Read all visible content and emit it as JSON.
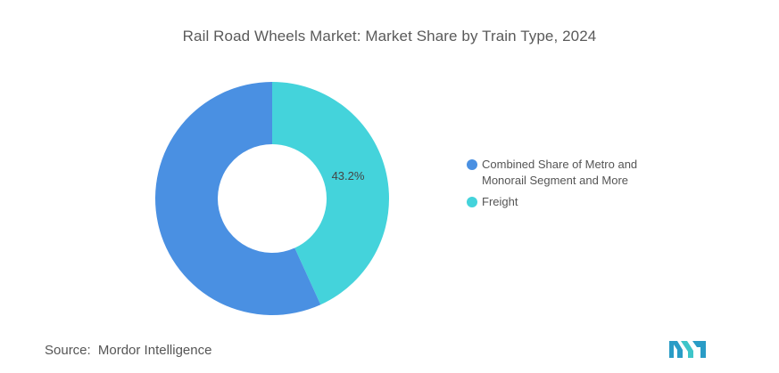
{
  "title": "Rail Road Wheels Market: Market Share by Train Type, 2024",
  "chart_data": {
    "type": "pie",
    "donut": true,
    "categories": [
      "Combined Share of Metro and Monorail Segment and More",
      "Freight"
    ],
    "values": [
      56.8,
      43.2
    ],
    "data_labels": [
      "",
      "43.2%"
    ],
    "colors": [
      "#4a90e2",
      "#44d3db"
    ],
    "legend_position": "right"
  },
  "legend": {
    "items": [
      {
        "label": "Combined Share of Metro and Monorail Segment and More",
        "color": "#4a90e2"
      },
      {
        "label": "Freight",
        "color": "#44d3db"
      }
    ]
  },
  "source": {
    "key": "Source:",
    "value": "Mordor Intelligence"
  },
  "logo": {
    "icon": "mordor-intelligence-logo-icon",
    "colors": [
      "#2a9cc6",
      "#3ec5c9"
    ]
  }
}
